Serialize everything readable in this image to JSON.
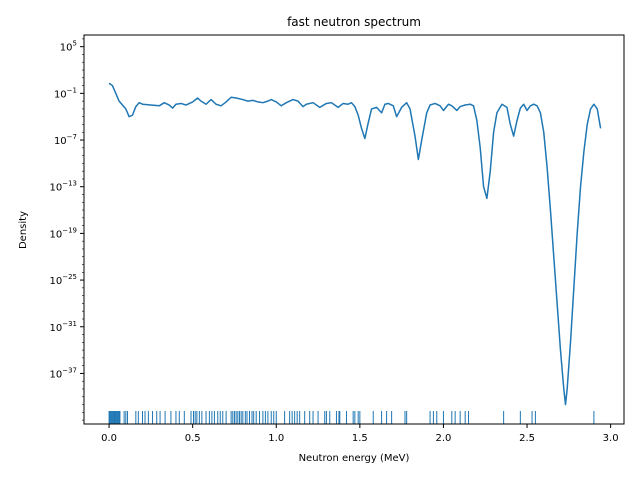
{
  "chart_data": {
    "type": "line",
    "title": "fast neutron spectrum",
    "xlabel": "Neutron energy (MeV)",
    "ylabel": "Density",
    "yscale": "log",
    "xlim": [
      -0.15,
      3.08
    ],
    "ylim_log10": [
      -43.5,
      6.5
    ],
    "grid": false,
    "legend": "none",
    "colors": {
      "line": "#1f77b4",
      "rug": "#1f77b4",
      "axes": "#000000"
    },
    "xticks": [
      {
        "value": 0.0,
        "label": "0.0"
      },
      {
        "value": 0.5,
        "label": "0.5"
      },
      {
        "value": 1.0,
        "label": "1.0"
      },
      {
        "value": 1.5,
        "label": "1.5"
      },
      {
        "value": 2.0,
        "label": "2.0"
      },
      {
        "value": 2.5,
        "label": "2.5"
      },
      {
        "value": 3.0,
        "label": "3.0"
      }
    ],
    "yticks": [
      {
        "exp": 5,
        "base": "10",
        "sup": "5"
      },
      {
        "exp": -1,
        "base": "10",
        "sup": "−1"
      },
      {
        "exp": -7,
        "base": "10",
        "sup": "−7"
      },
      {
        "exp": -13,
        "base": "10",
        "sup": "−13"
      },
      {
        "exp": -19,
        "base": "10",
        "sup": "−19"
      },
      {
        "exp": -25,
        "base": "10",
        "sup": "−25"
      },
      {
        "exp": -31,
        "base": "10",
        "sup": "−31"
      },
      {
        "exp": -37,
        "base": "10",
        "sup": "−37"
      }
    ],
    "series": [
      {
        "points_log10_density": [
          [
            0.0,
            0.3
          ],
          [
            0.02,
            0.0
          ],
          [
            0.04,
            -1.0
          ],
          [
            0.06,
            -2.0
          ],
          [
            0.08,
            -2.5
          ],
          [
            0.1,
            -3.0
          ],
          [
            0.12,
            -4.0
          ],
          [
            0.14,
            -3.8
          ],
          [
            0.16,
            -2.7
          ],
          [
            0.18,
            -2.2
          ],
          [
            0.2,
            -2.4
          ],
          [
            0.25,
            -2.5
          ],
          [
            0.3,
            -2.6
          ],
          [
            0.33,
            -2.2
          ],
          [
            0.36,
            -2.5
          ],
          [
            0.38,
            -2.9
          ],
          [
            0.4,
            -2.4
          ],
          [
            0.43,
            -2.3
          ],
          [
            0.46,
            -2.5
          ],
          [
            0.5,
            -2.1
          ],
          [
            0.53,
            -1.6
          ],
          [
            0.55,
            -2.0
          ],
          [
            0.58,
            -2.4
          ],
          [
            0.61,
            -1.8
          ],
          [
            0.64,
            -2.4
          ],
          [
            0.67,
            -2.6
          ],
          [
            0.7,
            -2.1
          ],
          [
            0.73,
            -1.5
          ],
          [
            0.76,
            -1.6
          ],
          [
            0.8,
            -1.8
          ],
          [
            0.83,
            -2.0
          ],
          [
            0.86,
            -1.9
          ],
          [
            0.89,
            -2.1
          ],
          [
            0.92,
            -2.2
          ],
          [
            0.95,
            -2.0
          ],
          [
            0.97,
            -1.8
          ],
          [
            1.0,
            -2.1
          ],
          [
            1.03,
            -2.6
          ],
          [
            1.06,
            -2.2
          ],
          [
            1.1,
            -1.8
          ],
          [
            1.13,
            -2.0
          ],
          [
            1.16,
            -2.7
          ],
          [
            1.18,
            -2.4
          ],
          [
            1.22,
            -2.2
          ],
          [
            1.26,
            -2.8
          ],
          [
            1.3,
            -2.3
          ],
          [
            1.33,
            -2.2
          ],
          [
            1.37,
            -2.8
          ],
          [
            1.4,
            -2.3
          ],
          [
            1.43,
            -2.4
          ],
          [
            1.45,
            -2.2
          ],
          [
            1.47,
            -2.7
          ],
          [
            1.49,
            -3.8
          ],
          [
            1.51,
            -5.5
          ],
          [
            1.53,
            -6.8
          ],
          [
            1.55,
            -4.8
          ],
          [
            1.57,
            -3.0
          ],
          [
            1.6,
            -2.8
          ],
          [
            1.63,
            -3.5
          ],
          [
            1.65,
            -2.4
          ],
          [
            1.67,
            -2.3
          ],
          [
            1.7,
            -2.6
          ],
          [
            1.72,
            -4.0
          ],
          [
            1.75,
            -2.8
          ],
          [
            1.78,
            -2.2
          ],
          [
            1.8,
            -3.0
          ],
          [
            1.83,
            -6.5
          ],
          [
            1.85,
            -9.5
          ],
          [
            1.87,
            -7.0
          ],
          [
            1.9,
            -3.5
          ],
          [
            1.92,
            -2.5
          ],
          [
            1.95,
            -2.3
          ],
          [
            1.98,
            -2.6
          ],
          [
            2.0,
            -3.2
          ],
          [
            2.03,
            -2.4
          ],
          [
            2.05,
            -2.6
          ],
          [
            2.08,
            -3.2
          ],
          [
            2.1,
            -2.7
          ],
          [
            2.13,
            -2.5
          ],
          [
            2.16,
            -2.4
          ],
          [
            2.18,
            -2.6
          ],
          [
            2.2,
            -4.5
          ],
          [
            2.22,
            -8.0
          ],
          [
            2.24,
            -13.0
          ],
          [
            2.26,
            -14.5
          ],
          [
            2.28,
            -11.0
          ],
          [
            2.3,
            -6.0
          ],
          [
            2.32,
            -3.5
          ],
          [
            2.35,
            -2.4
          ],
          [
            2.38,
            -2.8
          ],
          [
            2.4,
            -5.0
          ],
          [
            2.42,
            -6.5
          ],
          [
            2.44,
            -4.5
          ],
          [
            2.46,
            -2.9
          ],
          [
            2.48,
            -2.4
          ],
          [
            2.5,
            -3.2
          ],
          [
            2.52,
            -2.6
          ],
          [
            2.54,
            -2.4
          ],
          [
            2.56,
            -2.6
          ],
          [
            2.58,
            -3.5
          ],
          [
            2.6,
            -6.0
          ],
          [
            2.62,
            -10.5
          ],
          [
            2.64,
            -16.0
          ],
          [
            2.66,
            -22.0
          ],
          [
            2.68,
            -28.0
          ],
          [
            2.7,
            -34.0
          ],
          [
            2.72,
            -39.0
          ],
          [
            2.73,
            -41.0
          ],
          [
            2.74,
            -39.0
          ],
          [
            2.76,
            -33.0
          ],
          [
            2.78,
            -26.0
          ],
          [
            2.8,
            -19.0
          ],
          [
            2.82,
            -13.0
          ],
          [
            2.84,
            -8.5
          ],
          [
            2.86,
            -5.0
          ],
          [
            2.88,
            -3.0
          ],
          [
            2.9,
            -2.4
          ],
          [
            2.92,
            -3.0
          ],
          [
            2.94,
            -5.5
          ]
        ]
      }
    ],
    "rug_x": [
      0.0,
      0.005,
      0.01,
      0.015,
      0.02,
      0.025,
      0.03,
      0.035,
      0.04,
      0.045,
      0.05,
      0.055,
      0.06,
      0.065,
      0.09,
      0.1,
      0.11,
      0.16,
      0.175,
      0.2,
      0.215,
      0.235,
      0.26,
      0.285,
      0.305,
      0.335,
      0.37,
      0.4,
      0.42,
      0.45,
      0.49,
      0.505,
      0.515,
      0.525,
      0.54,
      0.555,
      0.58,
      0.6,
      0.615,
      0.63,
      0.65,
      0.665,
      0.68,
      0.7,
      0.73,
      0.74,
      0.75,
      0.76,
      0.77,
      0.78,
      0.79,
      0.8,
      0.815,
      0.825,
      0.84,
      0.855,
      0.865,
      0.88,
      0.9,
      0.92,
      0.935,
      0.95,
      0.97,
      0.985,
      1.0,
      1.05,
      1.08,
      1.095,
      1.11,
      1.125,
      1.14,
      1.17,
      1.2,
      1.22,
      1.25,
      1.29,
      1.3,
      1.32,
      1.36,
      1.375,
      1.38,
      1.42,
      1.46,
      1.47,
      1.49,
      1.5,
      1.58,
      1.63,
      1.66,
      1.69,
      1.77,
      1.78,
      1.92,
      1.94,
      1.96,
      2.0,
      2.05,
      2.07,
      2.1,
      2.13,
      2.15,
      2.36,
      2.46,
      2.53,
      2.55,
      2.9
    ]
  }
}
